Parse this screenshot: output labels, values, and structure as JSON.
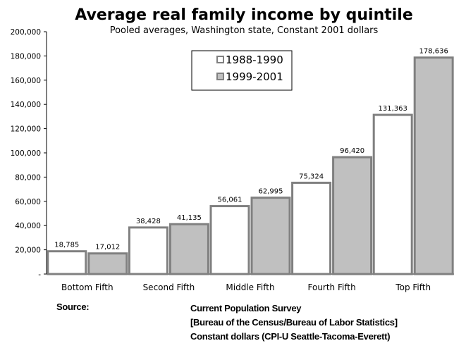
{
  "chart_data": {
    "type": "bar",
    "title": "Average real family income by quintile",
    "subtitle": "Pooled averages, Washington state, Constant 2001 dollars",
    "categories": [
      "Bottom Fifth",
      "Second Fifth",
      "Middle Fifth",
      "Fourth Fifth",
      "Top Fifth"
    ],
    "series": [
      {
        "name": "1988-1990",
        "values": [
          18785,
          38428,
          56061,
          75324,
          131363
        ],
        "labels": [
          "18,785",
          "38,428",
          "56,061",
          "75,324",
          "131,363"
        ],
        "color": "#ffffff"
      },
      {
        "name": "1999-2001",
        "values": [
          17012,
          41135,
          62995,
          96420,
          178636
        ],
        "labels": [
          "17,012",
          "41,135",
          "62,995",
          "96,420",
          "178,636"
        ],
        "color": "#c0c0c0"
      }
    ],
    "ylim": [
      0,
      200000
    ],
    "yticks": [
      0,
      20000,
      40000,
      60000,
      80000,
      100000,
      120000,
      140000,
      160000,
      180000,
      200000
    ],
    "ytick_labels": [
      "-",
      "20,000",
      "40,000",
      "60,000",
      "80,000",
      "100,000",
      "120,000",
      "140,000",
      "160,000",
      "180,000",
      "200,000"
    ],
    "grid": false,
    "legend_position": "top-center",
    "bar_edge_color": "#808080"
  },
  "source": {
    "label": "Source:",
    "lines": [
      "Current Population Survey",
      "[Bureau of the Census/Bureau of Labor Statistics]",
      "Constant dollars (CPI-U Seattle-Tacoma-Everett)"
    ]
  }
}
